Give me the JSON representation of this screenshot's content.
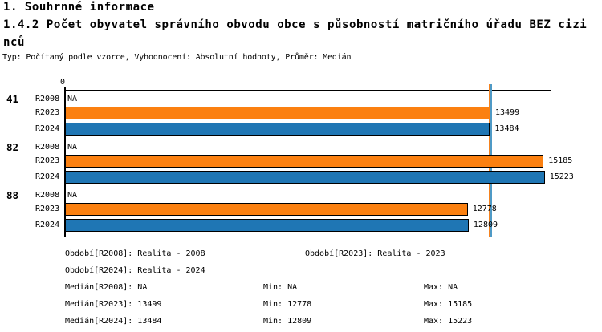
{
  "header": {
    "line1": "1. Souhrnné informace",
    "line2": "1.4.2 Počet obyvatel správního obvodu obce s působností matričního úřadu BEZ cizi",
    "line3": "nců",
    "meta": "Typ: Počítaný podle vzorce, Vyhodnocení: Absolutní hodnoty, Průměr: Medián"
  },
  "chart_data": {
    "type": "bar",
    "orientation": "horizontal",
    "title": "1.4.2 Počet obyvatel správního obvodu obce s působností matričního úřadu BEZ cizinců",
    "origin_label": "0",
    "xlim": [
      0,
      15410
    ],
    "grid": false,
    "na_label": "NA",
    "categories": [
      "41",
      "82",
      "88"
    ],
    "series": [
      {
        "name": "R2008",
        "values": [
          null,
          null,
          null
        ],
        "color": "#ffffff"
      },
      {
        "name": "R2023",
        "values": [
          13499,
          15185,
          12778
        ],
        "color": "#fb8010"
      },
      {
        "name": "R2024",
        "values": [
          13484,
          15223,
          12809
        ],
        "color": "#1f76b4"
      }
    ],
    "medians": [
      {
        "series": "R2023",
        "value": 13499,
        "color": "#f5821e"
      },
      {
        "series": "R2024",
        "value": 13484,
        "color": "#4f9ac6"
      }
    ]
  },
  "footer": {
    "periods": [
      "Období[R2008]: Realita - 2008",
      "Období[R2023]: Realita - 2023",
      "Období[R2024]: Realita - 2024"
    ],
    "stats": [
      {
        "median": "Medián[R2008]: NA",
        "min": "Min: NA",
        "max": "Max: NA"
      },
      {
        "median": "Medián[R2023]: 13499",
        "min": "Min: 12778",
        "max": "Max: 15185"
      },
      {
        "median": "Medián[R2024]: 13484",
        "min": "Min: 12809",
        "max": "Max: 15223"
      }
    ]
  }
}
